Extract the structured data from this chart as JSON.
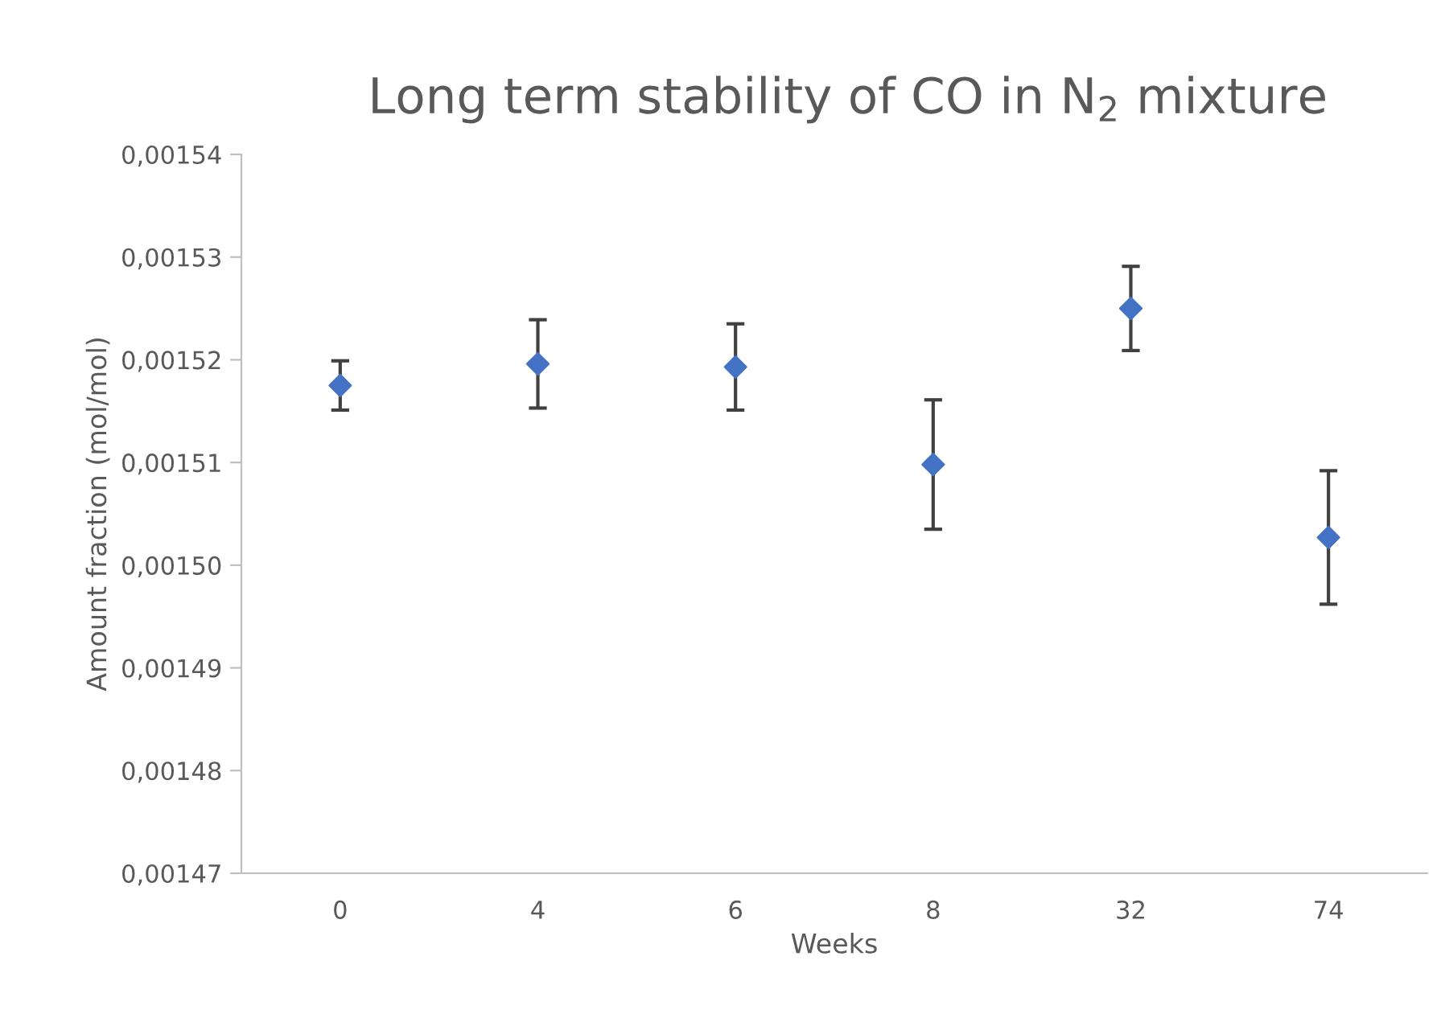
{
  "chart_data": {
    "type": "scatter",
    "title": "Long term stability of CO in N$_{2}$ mixture",
    "xlabel": "Weeks",
    "ylabel": "Amount fraction (mol/mol)",
    "categories": [
      "0",
      "4",
      "6",
      "8",
      "32",
      "74"
    ],
    "series": [
      {
        "color": "#4472c4",
        "values": [
          0.0015175,
          0.0015196,
          0.0015193,
          0.0015098,
          0.001525,
          0.0015027
        ],
        "errors": [
          2.4e-06,
          4.3e-06,
          4.2e-06,
          6.3e-06,
          4.1e-06,
          6.5e-06
        ]
      }
    ],
    "marker": "diamond",
    "grid": false,
    "legend": false,
    "ylim": [
      0.00147,
      0.00154
    ],
    "yticks": [
      {
        "value": 0.00147,
        "label": "0,00147"
      },
      {
        "value": 0.00148,
        "label": "0,00148"
      },
      {
        "value": 0.00149,
        "label": "0,00149"
      },
      {
        "value": 0.0015,
        "label": "0,00150"
      },
      {
        "value": 0.00151,
        "label": "0,00151"
      },
      {
        "value": 0.00152,
        "label": "0,00152"
      },
      {
        "value": 0.00153,
        "label": "0,00153"
      },
      {
        "value": 0.00154,
        "label": "0,00154"
      }
    ]
  }
}
